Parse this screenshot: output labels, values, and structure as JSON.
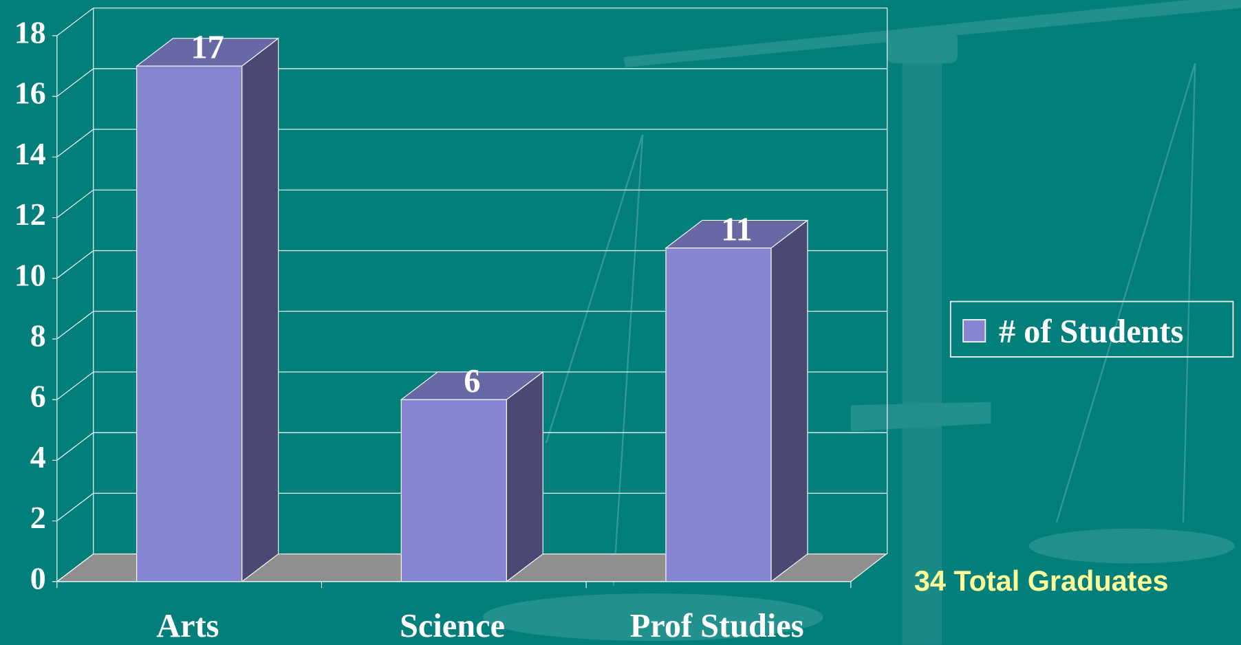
{
  "chart_data": {
    "type": "bar",
    "categories": [
      "Arts",
      "Science",
      "Prof Studies"
    ],
    "series": [
      {
        "name": "# of Students",
        "color": "#8585d2",
        "values": [
          17,
          6,
          11
        ]
      }
    ],
    "ylim": [
      0,
      18
    ],
    "yticks": [
      0,
      2,
      4,
      6,
      8,
      10,
      12,
      14,
      16,
      18
    ],
    "grid": true,
    "annotation": "34 Total Graduates"
  }
}
